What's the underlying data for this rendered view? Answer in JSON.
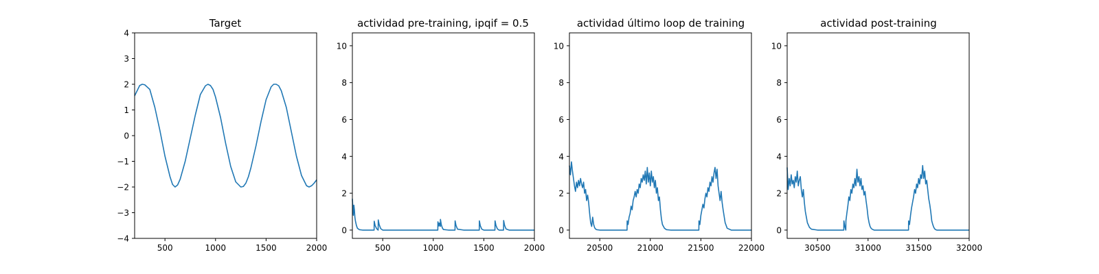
{
  "figure_type": "matplotlib-subplots",
  "colors": {
    "series": "#1f77b4",
    "axis": "#000000",
    "background": "#ffffff"
  },
  "chart_data": [
    {
      "type": "line",
      "title": "Target",
      "xlim": [
        200,
        2000
      ],
      "ylim": [
        -4,
        4
      ],
      "xticks": [
        500,
        1000,
        1500,
        2000
      ],
      "yticks": [
        -4,
        -3,
        -2,
        -1,
        0,
        1,
        2,
        3,
        4
      ],
      "tick_labels_x": [
        "500",
        "1000",
        "1500",
        "2000"
      ],
      "tick_labels_y": [
        "−4",
        "−3",
        "−2",
        "−1",
        "0",
        "1",
        "2",
        "3",
        "4"
      ],
      "grid": false,
      "series": [
        {
          "x": [
            200,
            250,
            275,
            300,
            350,
            400,
            450,
            500,
            550,
            575,
            600,
            625,
            650,
            700,
            750,
            800,
            850,
            900,
            925,
            950,
            975,
            1000,
            1050,
            1100,
            1150,
            1200,
            1250,
            1275,
            1300,
            1325,
            1350,
            1400,
            1450,
            1500,
            1550,
            1575,
            1600,
            1625,
            1650,
            1700,
            1750,
            1800,
            1850,
            1900,
            1925,
            1950,
            1975,
            2000
          ],
          "y": [
            1.55,
            1.95,
            2.0,
            1.98,
            1.8,
            1.1,
            0.2,
            -0.8,
            -1.6,
            -1.9,
            -2.0,
            -1.92,
            -1.7,
            -1.0,
            -0.1,
            0.8,
            1.6,
            1.94,
            2.0,
            1.95,
            1.8,
            1.5,
            0.7,
            -0.3,
            -1.2,
            -1.8,
            -2.0,
            -1.98,
            -1.85,
            -1.6,
            -1.25,
            -0.4,
            0.55,
            1.4,
            1.9,
            2.0,
            2.0,
            1.94,
            1.75,
            1.1,
            0.15,
            -0.8,
            -1.55,
            -1.95,
            -2.0,
            -1.95,
            -1.85,
            -1.72
          ]
        }
      ]
    },
    {
      "type": "line",
      "title": "actividad pre-training, ipqif = 0.5",
      "xlim": [
        200,
        2000
      ],
      "ylim": [
        -0.45,
        10.7
      ],
      "xticks": [
        500,
        1000,
        1500,
        2000
      ],
      "yticks": [
        0,
        2,
        4,
        6,
        8,
        10
      ],
      "tick_labels_x": [
        "500",
        "1000",
        "1500",
        "2000"
      ],
      "tick_labels_y": [
        "0",
        "2",
        "4",
        "6",
        "8",
        "10"
      ],
      "grid": false,
      "series": [
        {
          "x": [
            200,
            205,
            210,
            215,
            220,
            225,
            230,
            240,
            250,
            270,
            300,
            350,
            400,
            415,
            416,
            425,
            440,
            455,
            456,
            465,
            480,
            500,
            600,
            800,
            1000,
            1045,
            1046,
            1055,
            1060,
            1070,
            1071,
            1080,
            1090,
            1100,
            1150,
            1200,
            1215,
            1216,
            1225,
            1240,
            1300,
            1400,
            1450,
            1455,
            1456,
            1465,
            1480,
            1500,
            1550,
            1600,
            1610,
            1611,
            1620,
            1635,
            1650,
            1680,
            1695,
            1696,
            1705,
            1720,
            1750,
            1800,
            1900,
            2000
          ],
          "y": [
            1.7,
            1.2,
            0.8,
            1.35,
            1.1,
            0.7,
            0.5,
            0.25,
            0.1,
            0.02,
            0.0,
            0.0,
            0.0,
            0.0,
            0.48,
            0.25,
            0.08,
            0.0,
            0.55,
            0.3,
            0.08,
            0.0,
            0.0,
            0.0,
            0.0,
            0.0,
            0.45,
            0.22,
            0.38,
            0.2,
            0.58,
            0.28,
            0.12,
            0.03,
            0.0,
            0.0,
            0.0,
            0.5,
            0.25,
            0.05,
            0.0,
            0.0,
            0.0,
            0.0,
            0.5,
            0.24,
            0.05,
            0.0,
            0.0,
            0.0,
            0.0,
            0.5,
            0.25,
            0.06,
            0.0,
            0.0,
            0.0,
            0.52,
            0.26,
            0.06,
            0.0,
            0.0,
            0.0,
            0.0
          ]
        }
      ]
    },
    {
      "type": "line",
      "title": "actividad último loop de training",
      "xlim": [
        20200,
        22000
      ],
      "ylim": [
        -0.45,
        10.7
      ],
      "xticks": [
        20500,
        21000,
        21500,
        22000
      ],
      "yticks": [
        0,
        2,
        4,
        6,
        8,
        10
      ],
      "tick_labels_x": [
        "20500",
        "21000",
        "21500",
        "22000"
      ],
      "tick_labels_y": [
        "0",
        "2",
        "4",
        "6",
        "8",
        "10"
      ],
      "grid": false,
      "series": [
        {
          "x": [
            20200,
            20210,
            20220,
            20230,
            20240,
            20250,
            20260,
            20270,
            20280,
            20290,
            20300,
            20310,
            20320,
            20330,
            20340,
            20350,
            20360,
            20370,
            20380,
            20390,
            20400,
            20410,
            20420,
            20430,
            20440,
            20450,
            20460,
            20470,
            20500,
            20600,
            20700,
            20770,
            20771,
            20780,
            20790,
            20800,
            20810,
            20820,
            20830,
            20840,
            20850,
            20860,
            20870,
            20880,
            20890,
            20900,
            20910,
            20920,
            20930,
            20940,
            20950,
            20960,
            20970,
            20980,
            20990,
            21000,
            21010,
            21020,
            21030,
            21040,
            21050,
            21060,
            21070,
            21080,
            21090,
            21100,
            21110,
            21120,
            21140,
            21160,
            21200,
            21300,
            21400,
            21480,
            21481,
            21490,
            21500,
            21510,
            21520,
            21530,
            21540,
            21550,
            21560,
            21570,
            21580,
            21590,
            21600,
            21610,
            21620,
            21630,
            21640,
            21650,
            21660,
            21670,
            21680,
            21690,
            21700,
            21710,
            21720,
            21740,
            21760,
            21800,
            21900,
            22000
          ],
          "y": [
            3.5,
            3.0,
            3.7,
            3.2,
            2.8,
            2.4,
            2.1,
            2.6,
            2.3,
            2.7,
            2.4,
            2.8,
            2.5,
            2.3,
            2.6,
            2.0,
            2.2,
            1.6,
            1.9,
            1.5,
            0.9,
            0.4,
            0.2,
            0.7,
            0.3,
            0.12,
            0.05,
            0.02,
            0.0,
            0.0,
            0.0,
            0.0,
            0.5,
            0.3,
            0.7,
            0.9,
            1.3,
            1.1,
            1.6,
            1.8,
            2.1,
            1.8,
            2.2,
            2.0,
            2.5,
            2.3,
            2.8,
            2.6,
            3.0,
            2.7,
            3.2,
            2.5,
            3.4,
            2.6,
            3.1,
            2.4,
            3.2,
            2.6,
            2.9,
            2.3,
            2.7,
            2.0,
            2.3,
            1.6,
            1.8,
            1.1,
            0.6,
            0.3,
            0.1,
            0.02,
            0.0,
            0.0,
            0.0,
            0.0,
            0.5,
            0.3,
            0.8,
            1.1,
            1.4,
            1.2,
            1.7,
            2.0,
            1.8,
            2.3,
            2.1,
            2.6,
            2.4,
            2.9,
            2.6,
            3.1,
            3.4,
            2.8,
            3.3,
            2.4,
            2.0,
            1.6,
            2.1,
            1.5,
            1.1,
            0.4,
            0.1,
            0.0,
            0.0,
            0.0
          ]
        }
      ]
    },
    {
      "type": "line",
      "title": "actividad post-training",
      "xlim": [
        30200,
        32000
      ],
      "ylim": [
        -0.45,
        10.7
      ],
      "xticks": [
        30500,
        31000,
        31500,
        32000
      ],
      "yticks": [
        0,
        2,
        4,
        6,
        8,
        10
      ],
      "tick_labels_x": [
        "30500",
        "31000",
        "31500",
        "32000"
      ],
      "tick_labels_y": [
        "0",
        "2",
        "4",
        "6",
        "8",
        "10"
      ],
      "grid": false,
      "series": [
        {
          "x": [
            30200,
            30210,
            30220,
            30230,
            30240,
            30250,
            30260,
            30270,
            30280,
            30290,
            30300,
            30310,
            30320,
            30330,
            30340,
            30350,
            30360,
            30370,
            30380,
            30390,
            30400,
            30420,
            30440,
            30500,
            30600,
            30700,
            30760,
            30761,
            30770,
            30780,
            30781,
            30790,
            30800,
            30810,
            30820,
            30830,
            30840,
            30850,
            30860,
            30870,
            30880,
            30890,
            30900,
            30910,
            30920,
            30930,
            30940,
            30950,
            30960,
            30970,
            30980,
            30990,
            31000,
            31010,
            31020,
            31030,
            31040,
            31060,
            31080,
            31100,
            31200,
            31300,
            31400,
            31401,
            31410,
            31420,
            31430,
            31440,
            31450,
            31460,
            31470,
            31480,
            31490,
            31500,
            31510,
            31520,
            31530,
            31540,
            31550,
            31560,
            31570,
            31580,
            31590,
            31600,
            31610,
            31620,
            31630,
            31640,
            31650,
            31660,
            31670,
            31680,
            31700,
            31720,
            31760,
            31800,
            31900,
            32000
          ],
          "y": [
            3.4,
            2.2,
            2.8,
            2.4,
            3.0,
            2.5,
            2.7,
            2.3,
            2.9,
            2.6,
            3.2,
            2.4,
            2.7,
            2.9,
            2.2,
            1.8,
            2.2,
            1.5,
            1.0,
            0.7,
            0.4,
            0.15,
            0.05,
            0.0,
            0.0,
            0.0,
            0.0,
            0.5,
            0.2,
            0.0,
            0.5,
            0.9,
            1.3,
            1.8,
            1.6,
            2.2,
            2.0,
            2.5,
            2.3,
            2.8,
            2.4,
            3.3,
            2.6,
            2.9,
            2.4,
            2.8,
            2.2,
            2.4,
            1.9,
            2.1,
            1.6,
            1.2,
            0.7,
            0.4,
            0.2,
            0.1,
            0.05,
            0.0,
            0.0,
            0.0,
            0.0,
            0.0,
            0.0,
            0.5,
            0.3,
            0.8,
            1.2,
            1.5,
            1.8,
            2.2,
            2.0,
            2.5,
            2.3,
            2.8,
            2.5,
            3.0,
            2.8,
            3.5,
            2.8,
            3.2,
            2.5,
            2.7,
            2.2,
            1.7,
            1.4,
            1.0,
            0.5,
            0.3,
            0.15,
            0.06,
            0.02,
            0.0,
            0.0,
            0.0,
            0.0,
            0.0,
            0.0,
            0.0
          ]
        }
      ]
    }
  ]
}
